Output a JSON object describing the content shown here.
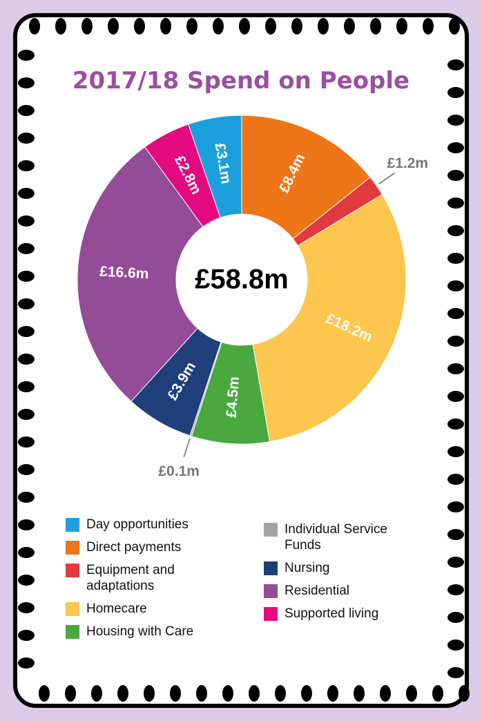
{
  "chart_data": {
    "type": "donut",
    "title": "2017/18 Spend on People",
    "center_label": "£58.8m",
    "categories": [
      "Day opportunities",
      "Direct payments",
      "Equipment and adaptations",
      "Homecare",
      "Housing with Care",
      "Individual Service Funds",
      "Nursing",
      "Residential",
      "Supported living"
    ],
    "values": [
      3.1,
      8.4,
      1.2,
      18.2,
      4.5,
      0.1,
      3.9,
      16.6,
      2.8
    ],
    "value_labels": [
      "£3.1m",
      "£8.4m",
      "£1.2m",
      "£18.2m",
      "£4.5m",
      "£0.1m",
      "£3.9m",
      "£16.6m",
      "£2.8m"
    ],
    "colors": [
      "#1ba0dd",
      "#ee7518",
      "#e03a3e",
      "#fdc64e",
      "#4aa83e",
      "#a3a3a3",
      "#1f3f7a",
      "#934c98",
      "#e5097f"
    ],
    "legend": true
  }
}
